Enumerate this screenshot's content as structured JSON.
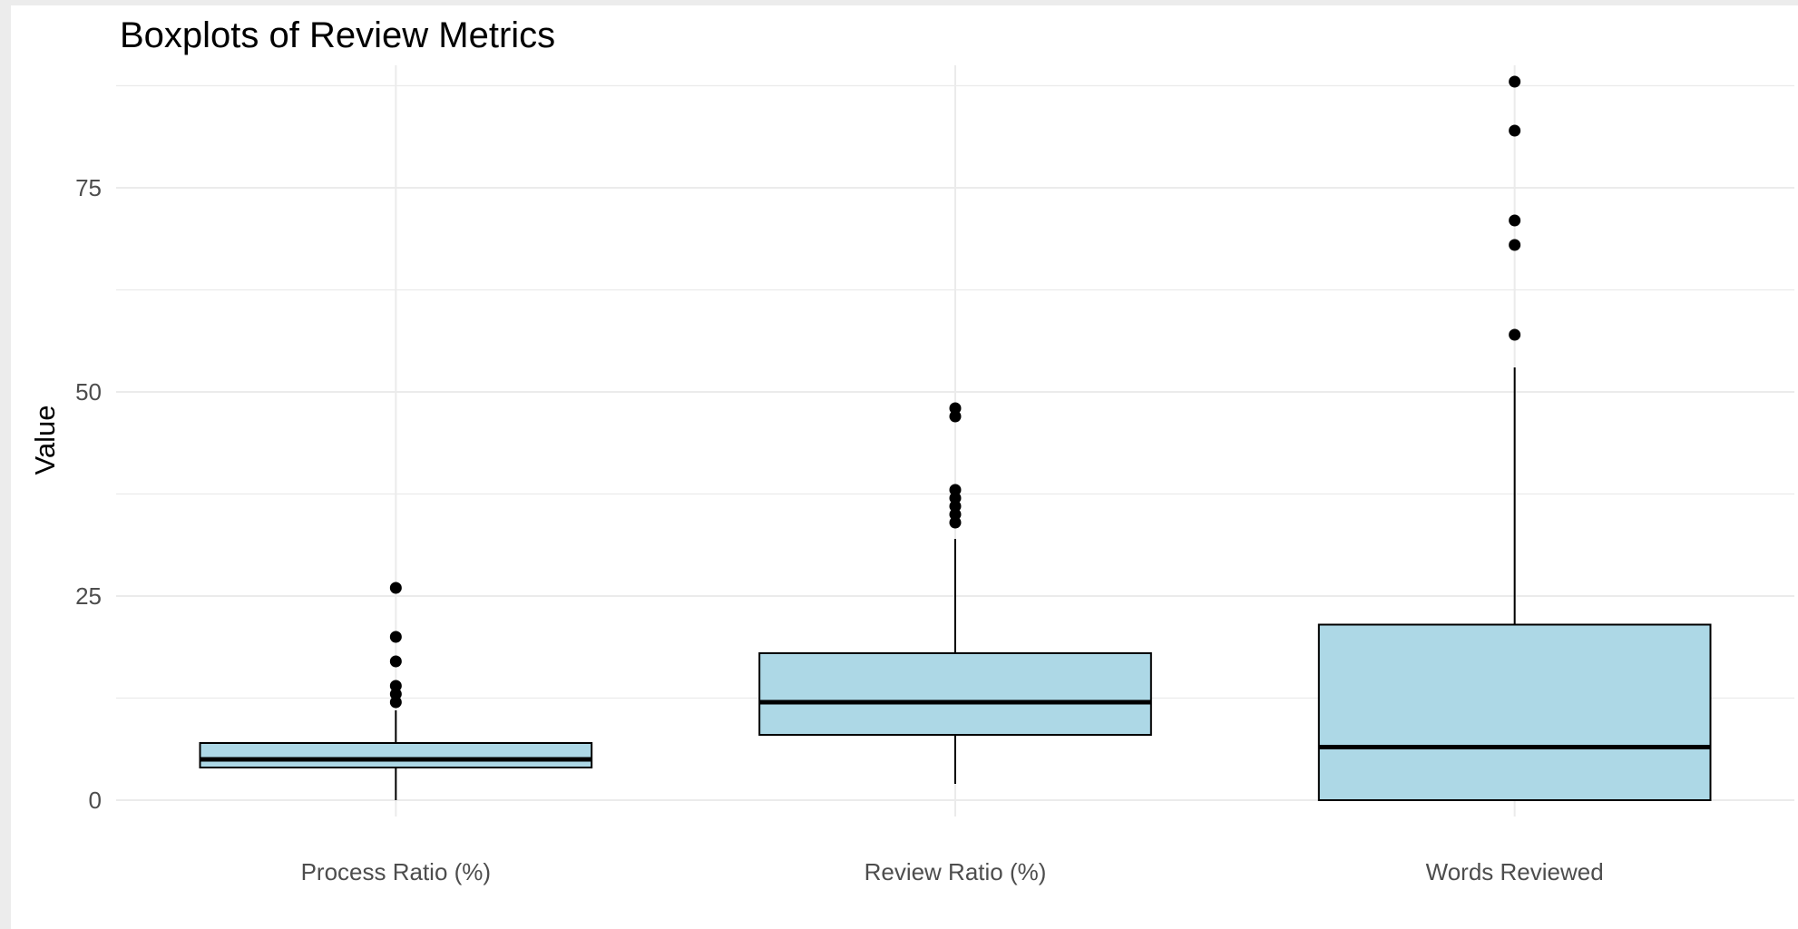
{
  "chart_data": {
    "type": "boxplot",
    "title": "Boxplots of Review Metrics",
    "xlabel": "",
    "ylabel": "Value",
    "ylim": [
      -2,
      90
    ],
    "y_ticks": [
      0,
      25,
      50,
      75
    ],
    "y_minor_ticks": [
      12.5,
      37.5,
      62.5,
      87.5
    ],
    "grid": true,
    "box_color": "#add8e6",
    "outline_color": "#000000",
    "grid_color": "#ebebeb",
    "categories": [
      "Process Ratio (%)",
      "Review Ratio (%)",
      "Words Reviewed"
    ],
    "boxes": [
      {
        "name": "Process Ratio (%)",
        "whisker_low": 0,
        "q1": 4,
        "median": 5,
        "q3": 7,
        "whisker_high": 11,
        "outliers": [
          12,
          13,
          14,
          17,
          20,
          26
        ]
      },
      {
        "name": "Review Ratio (%)",
        "whisker_low": 2,
        "q1": 8,
        "median": 12,
        "q3": 18,
        "whisker_high": 32,
        "outliers": [
          34,
          35,
          36,
          37,
          38,
          47,
          48
        ]
      },
      {
        "name": "Words Reviewed",
        "whisker_low": 0,
        "q1": 0,
        "median": 6.5,
        "q3": 21.5,
        "whisker_high": 53,
        "outliers": [
          57,
          68,
          71,
          82,
          88
        ]
      }
    ]
  }
}
